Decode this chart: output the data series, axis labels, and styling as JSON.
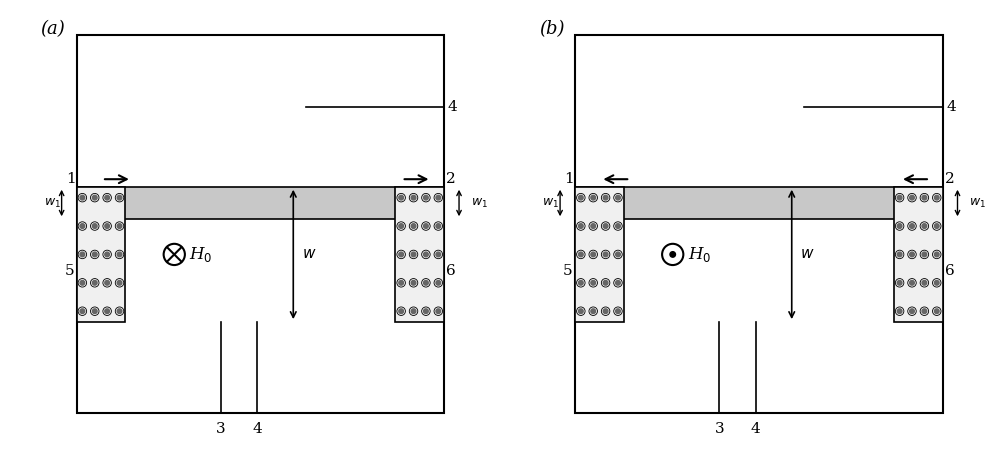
{
  "fig_width": 10.0,
  "fig_height": 4.62,
  "bg_color": "#ffffff",
  "panel_labels": [
    "(a)",
    "(b)"
  ],
  "outer_box_color": "#000000",
  "waveguide_fill_color": "#c8c8c8",
  "magnet_fill_color": "#f0f0f0",
  "line_color": "#000000",
  "label_fontsize": 11,
  "annotation_fontsize": 11
}
